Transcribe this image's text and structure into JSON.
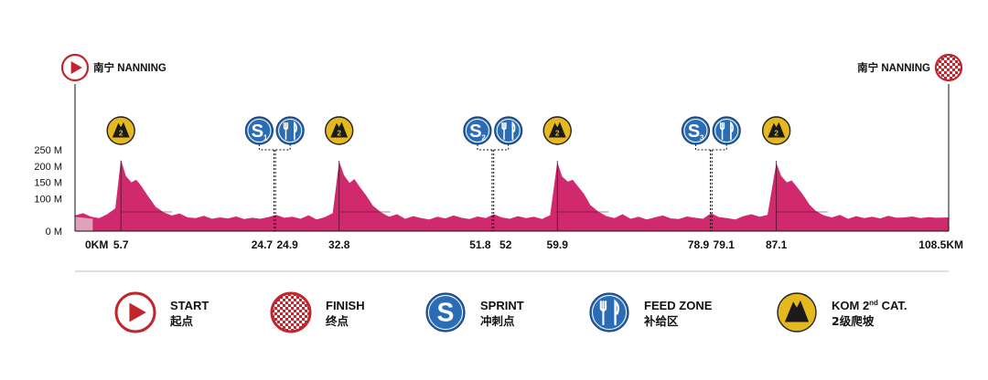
{
  "colors": {
    "profile": "#d1296e",
    "start_zone": "#e2a1bb",
    "start_red": "#c0272d",
    "sprint_blue": "#2a6db5",
    "kom_yellow": "#e5b81e",
    "line": "#111111"
  },
  "header": {
    "start_city": "南宁 NANNING",
    "finish_city": "南宁 NANNING"
  },
  "chart_data": {
    "type": "area",
    "title": "",
    "xlabel": "",
    "ylabel": "",
    "x_unit": "KM",
    "y_unit": "M",
    "xlim": [
      0,
      108.5
    ],
    "ylim": [
      0,
      250
    ],
    "y_ticks": [
      "0 M",
      "100 M",
      "150 M",
      "200 M",
      "250 M"
    ],
    "y_tick_values": [
      0,
      100,
      150,
      200,
      250
    ],
    "km_markers": [
      {
        "x": 0,
        "label": "0KM"
      },
      {
        "x": 5.7,
        "label": "5.7"
      },
      {
        "x": 24.7,
        "label": "24.7"
      },
      {
        "x": 24.9,
        "label": "24.9"
      },
      {
        "x": 32.8,
        "label": "32.8"
      },
      {
        "x": 51.8,
        "label": "51.8"
      },
      {
        "x": 52,
        "label": "52"
      },
      {
        "x": 59.9,
        "label": "59.9"
      },
      {
        "x": 78.9,
        "label": "78.9"
      },
      {
        "x": 79.1,
        "label": "79.1"
      },
      {
        "x": 87.1,
        "label": "87.1"
      },
      {
        "x": 108.5,
        "label": "108.5KM"
      }
    ],
    "kom_points": [
      {
        "x": 5.7,
        "category": "2"
      },
      {
        "x": 32.8,
        "category": "2"
      },
      {
        "x": 59.9,
        "category": "2"
      },
      {
        "x": 87.1,
        "category": "2"
      }
    ],
    "sprint_points": [
      {
        "x": 24.7,
        "number": "1"
      },
      {
        "x": 51.8,
        "number": "2"
      },
      {
        "x": 78.9,
        "number": "3"
      }
    ],
    "feed_points": [
      {
        "x": 24.9
      },
      {
        "x": 52
      },
      {
        "x": 79.1
      }
    ],
    "series": [
      {
        "x": [
          0,
          1,
          2,
          3,
          4,
          5,
          5.7,
          6.3,
          7.0,
          7.6,
          8.2,
          9.0,
          10,
          11,
          12,
          13,
          14,
          15,
          16,
          17,
          18,
          19,
          20,
          21,
          22,
          23,
          24,
          25,
          26,
          27,
          28,
          29,
          30,
          31,
          32,
          32.8,
          33.4,
          34.1,
          34.7,
          35.3,
          36.1,
          37,
          38,
          39,
          40,
          41,
          42,
          43,
          44,
          45,
          46,
          47,
          48,
          49,
          50,
          51,
          52,
          53,
          54,
          55,
          56,
          57,
          58,
          59,
          59.9,
          60.5,
          61.2,
          61.8,
          62.4,
          63.2,
          64,
          65,
          66,
          67,
          68,
          69,
          70,
          71,
          72,
          73,
          74,
          75,
          76,
          77,
          78,
          79,
          80,
          81,
          82,
          83,
          84,
          85,
          86,
          87.1,
          87.7,
          88.4,
          89.0,
          89.6,
          90.4,
          91.2,
          92,
          93,
          94,
          95,
          96,
          97,
          98,
          99,
          100,
          101,
          102,
          103,
          104,
          105,
          106,
          107,
          108.5
        ],
        "y": [
          48,
          55,
          44,
          40,
          52,
          70,
          220,
          170,
          150,
          158,
          140,
          110,
          75,
          58,
          48,
          54,
          42,
          40,
          47,
          38,
          42,
          39,
          45,
          37,
          41,
          38,
          43,
          50,
          41,
          44,
          38,
          49,
          36,
          43,
          55,
          215,
          172,
          148,
          160,
          138,
          112,
          78,
          58,
          44,
          52,
          38,
          46,
          40,
          36,
          44,
          39,
          48,
          41,
          37,
          45,
          40,
          52,
          42,
          38,
          46,
          40,
          44,
          37,
          49,
          212,
          168,
          152,
          158,
          140,
          115,
          80,
          60,
          46,
          40,
          52,
          38,
          44,
          36,
          42,
          48,
          39,
          37,
          45,
          41,
          38,
          55,
          43,
          40,
          36,
          46,
          52,
          44,
          50,
          210,
          170,
          150,
          156,
          138,
          112,
          82,
          62,
          48,
          42,
          50,
          38,
          46,
          40,
          44,
          39,
          47,
          41,
          42,
          45,
          40,
          43,
          41,
          42
        ]
      }
    ]
  },
  "legend": [
    {
      "icon": "start",
      "title": "START",
      "sub": "起点"
    },
    {
      "icon": "finish",
      "title": "FINISH",
      "sub": "终点"
    },
    {
      "icon": "sprint",
      "title": "SPRINT",
      "sub": "冲刺点"
    },
    {
      "icon": "feed",
      "title": "FEED ZONE",
      "sub": "补给区"
    },
    {
      "icon": "kom",
      "title": "KOM 2",
      "title_sup": "nd",
      "title_tail": " CAT.",
      "sub": "2级爬坡"
    }
  ]
}
